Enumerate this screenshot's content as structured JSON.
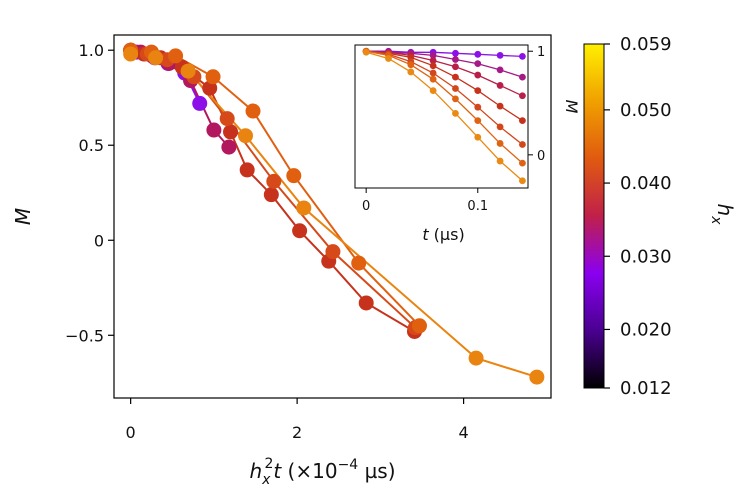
{
  "chart_data": [
    {
      "type": "scatter",
      "role": "main",
      "xlabel": "h_x^2 t (×10^-4 µs)",
      "xlabel_parts": {
        "h": "h",
        "sub": "x",
        "sup": "2",
        "t": "t",
        "rest": " (×10",
        "exp": "−4",
        "unit": " µs)"
      },
      "ylabel": "M",
      "xlim": [
        -0.2,
        5.05
      ],
      "ylim": [
        -0.83,
        1.08
      ],
      "xticks": [
        0,
        2,
        4
      ],
      "xtick_labels": [
        "0",
        "2",
        "4"
      ],
      "yticks": [
        1.0,
        0.5,
        0,
        -0.5
      ],
      "ytick_labels": [
        "1.0",
        "0.5",
        "0",
        "−0.5"
      ],
      "series": [
        {
          "hx": 0.02,
          "color": "#8c10e8",
          "x": [
            0.0,
            0.07,
            0.16,
            0.29,
            0.45,
            0.65,
            0.83
          ],
          "y": [
            1.0,
            0.99,
            0.98,
            0.96,
            0.93,
            0.88,
            0.72
          ]
        },
        {
          "hx": 0.025,
          "color": "#b2185f",
          "x": [
            0.0,
            0.12,
            0.26,
            0.46,
            0.72,
            1.0,
            1.18
          ],
          "y": [
            1.0,
            0.99,
            0.97,
            0.93,
            0.84,
            0.58,
            0.49
          ]
        },
        {
          "hx": 0.03,
          "color": "#c6321c",
          "x": [
            0.0,
            0.16,
            0.36,
            0.62,
            0.95,
            1.2,
            1.4,
            1.69,
            2.03,
            2.38,
            2.83,
            3.41
          ],
          "y": [
            1.0,
            0.98,
            0.96,
            0.91,
            0.8,
            0.57,
            0.37,
            0.24,
            0.05,
            -0.11,
            -0.33,
            -0.48
          ]
        },
        {
          "hx": 0.035,
          "color": "#d64a1a",
          "x": [
            0.0,
            0.2,
            0.44,
            0.76,
            1.16,
            1.72,
            2.43,
            3.42
          ],
          "y": [
            1.0,
            0.98,
            0.95,
            0.86,
            0.64,
            0.31,
            -0.06,
            -0.46
          ]
        },
        {
          "hx": 0.04,
          "color": "#e06010",
          "x": [
            0.0,
            0.25,
            0.54,
            0.99,
            1.47,
            1.96,
            2.74,
            3.47
          ],
          "y": [
            1.0,
            0.99,
            0.97,
            0.86,
            0.68,
            0.34,
            -0.12,
            -0.45
          ]
        },
        {
          "hx": 0.045,
          "color": "#ea8410",
          "x": [
            0.0,
            0.3,
            0.69,
            1.38,
            2.08,
            4.15,
            4.88
          ],
          "y": [
            0.98,
            0.96,
            0.89,
            0.55,
            0.17,
            -0.62,
            -0.72
          ]
        }
      ]
    },
    {
      "type": "line",
      "role": "inset",
      "xlabel": "t (µs)",
      "ylabel": "M",
      "xlim": [
        -0.01,
        0.145
      ],
      "ylim": [
        -0.32,
        1.06
      ],
      "xticks": [
        0,
        0.1
      ],
      "xtick_labels": [
        "0",
        "0.1"
      ],
      "yticks": [
        1,
        0
      ],
      "ytick_labels": [
        "1",
        "0"
      ],
      "series": [
        {
          "hx": 0.02,
          "color": "#8a12e6",
          "x": [
            0,
            0.02,
            0.04,
            0.06,
            0.08,
            0.1,
            0.12,
            0.14
          ],
          "y": [
            1.0,
            1.0,
            0.99,
            0.99,
            0.98,
            0.97,
            0.96,
            0.95
          ]
        },
        {
          "hx": 0.025,
          "color": "#a51a86",
          "x": [
            0,
            0.02,
            0.04,
            0.06,
            0.08,
            0.1,
            0.12,
            0.14
          ],
          "y": [
            1.0,
            0.99,
            0.98,
            0.96,
            0.92,
            0.88,
            0.82,
            0.75
          ]
        },
        {
          "hx": 0.03,
          "color": "#b8204a",
          "x": [
            0,
            0.02,
            0.04,
            0.06,
            0.08,
            0.1,
            0.12,
            0.14
          ],
          "y": [
            1.0,
            0.99,
            0.96,
            0.91,
            0.85,
            0.77,
            0.67,
            0.57
          ]
        },
        {
          "hx": 0.035,
          "color": "#c6321c",
          "x": [
            0,
            0.02,
            0.04,
            0.06,
            0.08,
            0.1,
            0.12,
            0.14
          ],
          "y": [
            1.0,
            0.98,
            0.94,
            0.86,
            0.75,
            0.62,
            0.47,
            0.33
          ]
        },
        {
          "hx": 0.04,
          "color": "#d2481a",
          "x": [
            0,
            0.02,
            0.04,
            0.06,
            0.08,
            0.1,
            0.12,
            0.14
          ],
          "y": [
            1.0,
            0.97,
            0.9,
            0.79,
            0.64,
            0.46,
            0.27,
            0.1
          ]
        },
        {
          "hx": 0.045,
          "color": "#de6414",
          "x": [
            0,
            0.02,
            0.04,
            0.06,
            0.08,
            0.1,
            0.12,
            0.14
          ],
          "y": [
            1.0,
            0.96,
            0.87,
            0.73,
            0.54,
            0.33,
            0.11,
            -0.08
          ]
        },
        {
          "hx": 0.05,
          "color": "#ea8a14",
          "x": [
            0,
            0.02,
            0.04,
            0.06,
            0.08,
            0.1,
            0.12,
            0.14
          ],
          "y": [
            0.99,
            0.93,
            0.8,
            0.62,
            0.4,
            0.17,
            -0.06,
            -0.25
          ]
        }
      ]
    },
    {
      "type": "colorbar",
      "role": "colorbar",
      "label": "h_x",
      "label_parts": {
        "h": "h",
        "sub": "x"
      },
      "range": [
        0.012,
        0.059
      ],
      "colormap": "gnuplot",
      "stops": [
        "#000000",
        "#4a0090",
        "#8a00f0",
        "#c0204a",
        "#e05a10",
        "#f0a000",
        "#fff000"
      ],
      "ticks": [
        0.059,
        0.05,
        0.04,
        0.03,
        0.02,
        0.012
      ],
      "tick_labels": [
        "0.059",
        "0.050",
        "0.040",
        "0.030",
        "0.020",
        "0.012"
      ]
    }
  ]
}
